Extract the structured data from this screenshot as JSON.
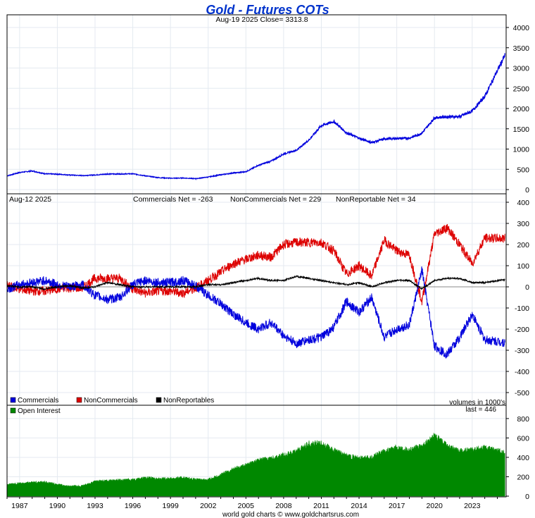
{
  "chart_data": [
    {
      "type": "line",
      "title": "Gold - Futures COTs",
      "subtitle": "Aug-19  2025   Close= 3313.8",
      "ylim": [
        0,
        4000
      ],
      "yticks": [
        0,
        500,
        1000,
        1500,
        2000,
        2500,
        3000,
        3500,
        4000
      ],
      "series": [
        {
          "x": [
            1986,
            1987,
            1988,
            1989,
            1990,
            1991,
            1992,
            1993,
            1994,
            1995,
            1996,
            1997,
            1998,
            1999,
            2000,
            2001,
            2002,
            2003,
            2004,
            2005,
            2006,
            2007,
            2008,
            2009,
            2010,
            2011,
            2012,
            2013,
            2014,
            2015,
            2016,
            2017,
            2018,
            2019,
            2020,
            2021,
            2022,
            2023,
            2024,
            2025.6
          ],
          "values": [
            340,
            420,
            460,
            390,
            380,
            360,
            345,
            360,
            385,
            385,
            390,
            340,
            295,
            280,
            285,
            270,
            310,
            365,
            410,
            440,
            600,
            700,
            880,
            970,
            1220,
            1580,
            1680,
            1400,
            1270,
            1160,
            1250,
            1260,
            1270,
            1390,
            1770,
            1800,
            1800,
            1940,
            2300,
            3313.8
          ]
        }
      ]
    },
    {
      "type": "line",
      "date_label": "Aug-12  2025",
      "ylim": [
        -500,
        400
      ],
      "yticks": [
        -500,
        -400,
        -300,
        -200,
        -100,
        0,
        100,
        200,
        300,
        400
      ],
      "net_labels": [
        "Commercials Net = -263",
        "NonCommercials Net = 229",
        "NonReportable Net = 34"
      ],
      "legend": [
        "Commercials",
        "NonCommercials",
        "NonReportables"
      ],
      "note": "volumes in 1000's",
      "series": [
        {
          "name": "Commercials",
          "color": "#0000dd",
          "x": [
            1986,
            1987,
            1988,
            1989,
            1990,
            1991,
            1992,
            1993,
            1994,
            1995,
            1996,
            1997,
            1998,
            1999,
            2000,
            2001,
            2002,
            2003,
            2004,
            2005,
            2006,
            2007,
            2008,
            2009,
            2010,
            2011,
            2012,
            2013,
            2014,
            2015,
            2016,
            2017,
            2018,
            2019,
            2020,
            2021,
            2022,
            2023,
            2024,
            2025.6
          ],
          "values": [
            -10,
            10,
            20,
            30,
            10,
            0,
            10,
            -40,
            -60,
            -50,
            10,
            30,
            20,
            20,
            30,
            5,
            -40,
            -80,
            -130,
            -170,
            -200,
            -170,
            -230,
            -270,
            -250,
            -240,
            -190,
            -70,
            -120,
            -50,
            -240,
            -200,
            -180,
            80,
            -280,
            -320,
            -240,
            -130,
            -250,
            -263
          ]
        },
        {
          "name": "NonCommercials",
          "color": "#dd0000",
          "x": [
            1986,
            1987,
            1988,
            1989,
            1990,
            1991,
            1992,
            1993,
            1994,
            1995,
            1996,
            1997,
            1998,
            1999,
            2000,
            2001,
            2002,
            2003,
            2004,
            2005,
            2006,
            2007,
            2008,
            2009,
            2010,
            2011,
            2012,
            2013,
            2014,
            2015,
            2016,
            2017,
            2018,
            2019,
            2020,
            2021,
            2022,
            2023,
            2024,
            2025.6
          ],
          "values": [
            5,
            -10,
            -20,
            -20,
            -10,
            -5,
            -5,
            40,
            40,
            40,
            -10,
            -30,
            -20,
            -20,
            -30,
            -5,
            30,
            70,
            110,
            130,
            150,
            140,
            200,
            210,
            210,
            210,
            170,
            60,
            100,
            50,
            220,
            170,
            150,
            -70,
            250,
            280,
            200,
            110,
            230,
            229
          ]
        },
        {
          "name": "NonReportables",
          "color": "#000000",
          "x": [
            1986,
            1987,
            1988,
            1989,
            1990,
            1991,
            1992,
            1993,
            1994,
            1995,
            1996,
            1997,
            1998,
            1999,
            2000,
            2001,
            2002,
            2003,
            2004,
            2005,
            2006,
            2007,
            2008,
            2009,
            2010,
            2011,
            2012,
            2013,
            2014,
            2015,
            2016,
            2017,
            2018,
            2019,
            2020,
            2021,
            2022,
            2023,
            2024,
            2025.6
          ],
          "values": [
            5,
            0,
            0,
            -10,
            0,
            5,
            -5,
            0,
            20,
            10,
            0,
            0,
            0,
            0,
            0,
            0,
            10,
            10,
            20,
            30,
            40,
            30,
            30,
            50,
            40,
            30,
            20,
            10,
            20,
            0,
            20,
            30,
            30,
            -10,
            30,
            40,
            40,
            20,
            20,
            34
          ]
        }
      ]
    },
    {
      "type": "area",
      "legend": [
        "Open Interest"
      ],
      "last_label": "last = 446",
      "ylim": [
        0,
        850
      ],
      "yticks": [
        0,
        200,
        400,
        600,
        800
      ],
      "series": [
        {
          "name": "Open Interest",
          "color": "#008800",
          "x": [
            1986,
            1987,
            1988,
            1989,
            1990,
            1991,
            1992,
            1993,
            1994,
            1995,
            1996,
            1997,
            1998,
            1999,
            2000,
            2001,
            2002,
            2003,
            2004,
            2005,
            2006,
            2007,
            2008,
            2009,
            2010,
            2011,
            2012,
            2013,
            2014,
            2015,
            2016,
            2017,
            2018,
            2019,
            2020,
            2021,
            2022,
            2023,
            2024,
            2025.6
          ],
          "values": [
            120,
            130,
            140,
            145,
            120,
            100,
            105,
            150,
            160,
            165,
            170,
            190,
            180,
            180,
            190,
            170,
            170,
            220,
            280,
            320,
            370,
            390,
            420,
            460,
            540,
            540,
            470,
            420,
            390,
            400,
            460,
            500,
            480,
            510,
            620,
            520,
            460,
            480,
            500,
            446
          ]
        }
      ]
    },
    {
      "type": "axis",
      "xticks": [
        "1987",
        "1990",
        "1993",
        "1996",
        "1999",
        "2002",
        "2005",
        "2008",
        "2011",
        "2014",
        "2017",
        "2020",
        "2023"
      ],
      "footer": "world gold charts © www.goldchartsrus.com"
    }
  ]
}
